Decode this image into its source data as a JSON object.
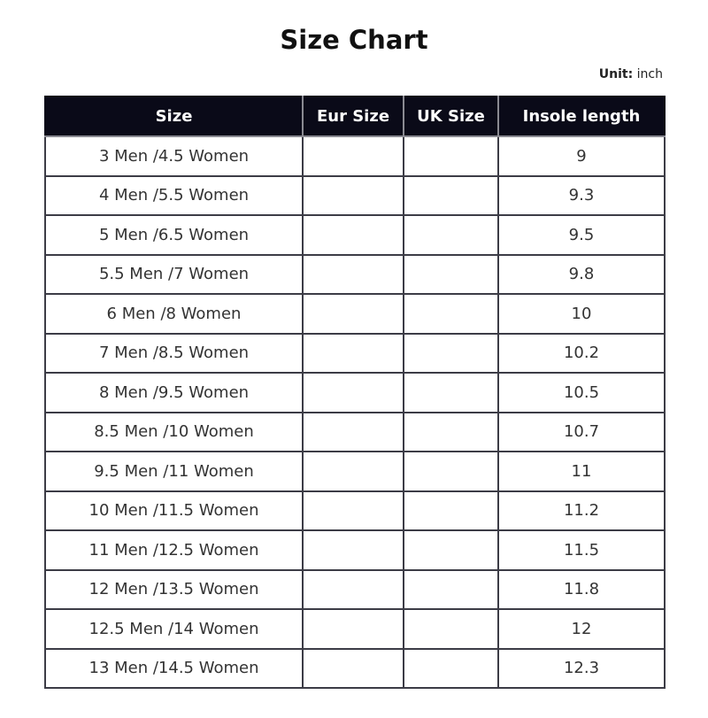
{
  "title": "Size Chart",
  "unit": {
    "label": "Unit:",
    "value": "inch"
  },
  "table": {
    "headers": [
      "Size",
      "Eur Size",
      "UK Size",
      "Insole length"
    ],
    "rows": [
      [
        "3 Men /4.5 Women",
        "",
        "",
        "9"
      ],
      [
        "4 Men /5.5 Women",
        "",
        "",
        "9.3"
      ],
      [
        "5 Men /6.5 Women",
        "",
        "",
        "9.5"
      ],
      [
        "5.5 Men /7 Women",
        "",
        "",
        "9.8"
      ],
      [
        "6 Men /8 Women",
        "",
        "",
        "10"
      ],
      [
        "7 Men /8.5 Women",
        "",
        "",
        "10.2"
      ],
      [
        "8 Men /9.5 Women",
        "",
        "",
        "10.5"
      ],
      [
        "8.5 Men /10 Women",
        "",
        "",
        "10.7"
      ],
      [
        "9.5 Men /11 Women",
        "",
        "",
        "11"
      ],
      [
        "10 Men /11.5 Women",
        "",
        "",
        "11.2"
      ],
      [
        "11 Men /12.5 Women",
        "",
        "",
        "11.5"
      ],
      [
        "12 Men /13.5 Women",
        "",
        "",
        "11.8"
      ],
      [
        "12.5 Men /14 Women",
        "",
        "",
        "12"
      ],
      [
        "13 Men /14.5 Women",
        "",
        "",
        "12.3"
      ]
    ]
  },
  "colors": {
    "header_bg": "#0a0a18",
    "header_text": "#ffffff",
    "border": "#3c3c46"
  }
}
